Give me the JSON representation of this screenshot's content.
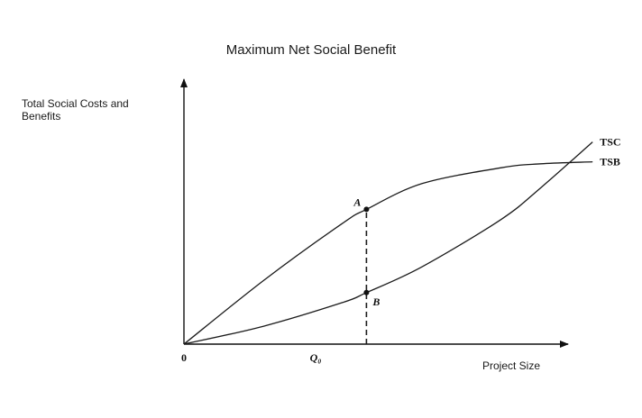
{
  "chart_data": {
    "type": "line",
    "title": "Maximum Net Social Benefit",
    "ylabel": "Total Social Costs and Benefits",
    "xlabel": "Project Size",
    "xlim": [
      0,
      10
    ],
    "ylim": [
      0,
      10
    ],
    "origin_label": "0",
    "q0": {
      "label": "Q₀",
      "x": 4.6
    },
    "series": [
      {
        "name": "TSC",
        "x": [
          0,
          2,
          4,
          4.6,
          6,
          8,
          9,
          10.3
        ],
        "y": [
          0,
          0.9,
          2.1,
          2.6,
          3.9,
          6.3,
          7.9,
          10.2
        ]
      },
      {
        "name": "TSB",
        "x": [
          0,
          2,
          4,
          4.6,
          6,
          8,
          9,
          10.3
        ],
        "y": [
          0,
          3.2,
          6.1,
          6.8,
          8.1,
          8.9,
          9.1,
          9.2
        ]
      }
    ],
    "points": [
      {
        "label": "A",
        "x": 4.6,
        "y": 6.8
      },
      {
        "label": "B",
        "x": 4.6,
        "y": 2.6
      }
    ]
  }
}
